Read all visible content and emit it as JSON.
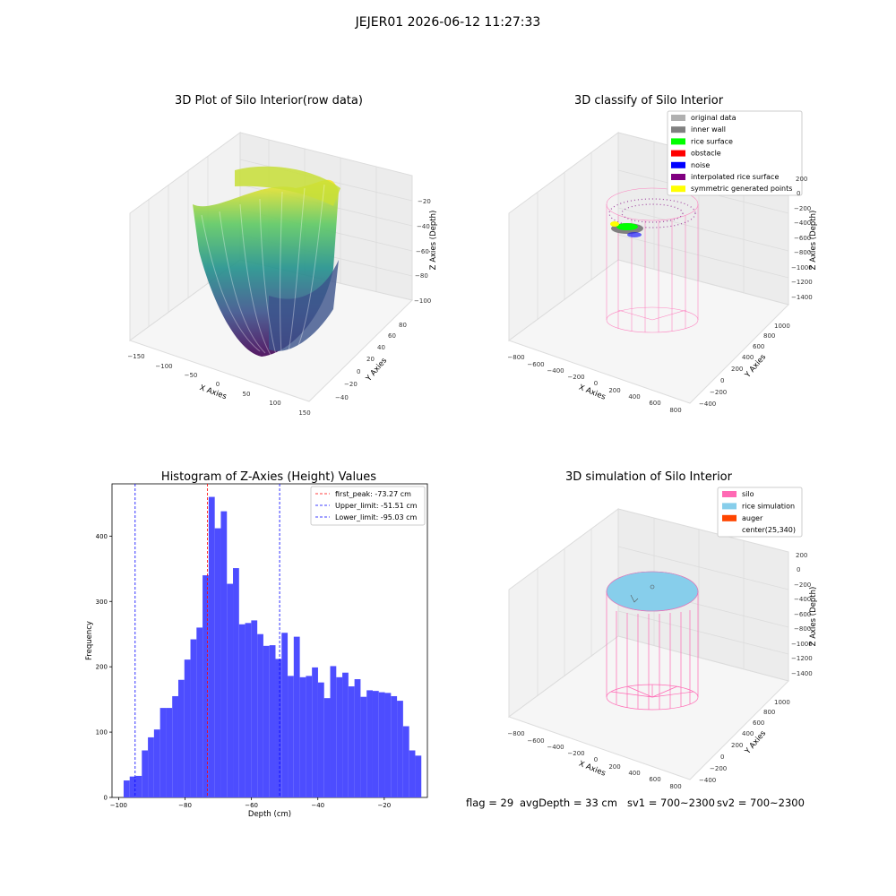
{
  "figure": {
    "suptitle": "JEJER01 2026-06-12 11:27:33"
  },
  "colors": {
    "original": "#b0b0b0",
    "inner_wall": "#808080",
    "rice_surface": "#00ff00",
    "obstacle": "#ff0000",
    "noise": "#0000ff",
    "interp": "#800080",
    "sym": "#ffff00",
    "silo": "#ff69b4",
    "rice_sim": "#87ceeb",
    "auger": "#ff4500",
    "hist_bar": "#4d4dff",
    "first_peak": "#ff0000",
    "limits": "#0000ff"
  },
  "chart_data": [
    {
      "id": "raw",
      "type": "scatter",
      "projection": "3d",
      "title": "3D Plot of Silo Interior(row data)",
      "xlabel": "X Axies",
      "ylabel": "Y Axies",
      "zlabel": "Z Axies (Depth)",
      "xlim": [
        -150,
        150
      ],
      "ylim": [
        -40,
        80
      ],
      "zlim": [
        -100,
        -20
      ],
      "xticks": [
        "−150",
        "−100",
        "−50",
        "0",
        "50",
        "100",
        "150"
      ],
      "yticks": [
        "−40",
        "−20",
        "0",
        "20",
        "40",
        "60",
        "80"
      ],
      "zticks": [
        "−20",
        "−40",
        "−60",
        "−80",
        "−100"
      ],
      "colormap": "viridis",
      "description_of_shape": "bowl-shaped point cloud, deepest near x≈0"
    },
    {
      "id": "classify",
      "type": "scatter",
      "projection": "3d",
      "title": "3D classify of Silo Interior",
      "xlabel": "X Axies",
      "ylabel": "Y Axies",
      "zlabel": "Z Axies (Depth)",
      "xticks": [
        "−800",
        "−600",
        "−400",
        "−200",
        "0",
        "200",
        "400",
        "600",
        "800"
      ],
      "yticks": [
        "−400",
        "−200",
        "0",
        "200",
        "400",
        "600",
        "800",
        "1000"
      ],
      "zticks": [
        "200",
        "0",
        "−200",
        "−400",
        "−600",
        "−800",
        "−1000",
        "−1200",
        "−1400"
      ],
      "legend": [
        {
          "label": "original data",
          "color_key": "original"
        },
        {
          "label": "inner wall",
          "color_key": "inner_wall"
        },
        {
          "label": "rice surface",
          "color_key": "rice_surface"
        },
        {
          "label": "obstacle",
          "color_key": "obstacle"
        },
        {
          "label": "noise",
          "color_key": "noise"
        },
        {
          "label": "interpolated rice surface",
          "color_key": "interp"
        },
        {
          "label": "symmetric generated points",
          "color_key": "sym"
        }
      ],
      "legend_loc": "upper right"
    },
    {
      "id": "hist",
      "type": "bar",
      "title": "Histogram of Z-Axies (Height) Values",
      "xlabel": "Depth (cm)",
      "ylabel": "Frequency",
      "xlim": [
        -102,
        -7
      ],
      "ylim": [
        0,
        480
      ],
      "xticks": [
        -100,
        -80,
        -60,
        -40,
        -20
      ],
      "xtick_labels": [
        "−100",
        "−80",
        "−60",
        "−40",
        "−20"
      ],
      "yticks": [
        0,
        100,
        200,
        300,
        400
      ],
      "yticks_labels": [
        "0",
        "100",
        "200",
        "300",
        "400"
      ],
      "bin_start": -98.5,
      "bin_width": 1.83,
      "values": [
        26,
        32,
        33,
        72,
        92,
        104,
        137,
        137,
        155,
        180,
        211,
        242,
        260,
        340,
        460,
        412,
        438,
        327,
        351,
        265,
        267,
        271,
        250,
        232,
        233,
        212,
        252,
        186,
        246,
        184,
        186,
        199,
        176,
        152,
        201,
        184,
        191,
        170,
        181,
        154,
        164,
        163,
        161,
        160,
        155,
        148,
        109,
        72,
        64
      ],
      "vlines": [
        {
          "x": -73.27,
          "label": "first_peak: -73.27 cm",
          "color_key": "first_peak"
        },
        {
          "x": -51.51,
          "label": "Upper_limit: -51.51 cm",
          "color_key": "limits"
        },
        {
          "x": -95.03,
          "label": "Lower_limit: -95.03 cm",
          "color_key": "limits"
        }
      ],
      "legend_loc": "upper right"
    },
    {
      "id": "sim",
      "type": "scatter",
      "projection": "3d",
      "title": "3D simulation of Silo Interior",
      "xlabel": "X Axies",
      "ylabel": "Y Axies",
      "zlabel": "Z Axies (Depth)",
      "xticks": [
        "−800",
        "−600",
        "−400",
        "−200",
        "0",
        "200",
        "400",
        "600",
        "800"
      ],
      "yticks": [
        "−400",
        "−200",
        "0",
        "200",
        "400",
        "600",
        "800",
        "1000"
      ],
      "zticks": [
        "200",
        "0",
        "−200",
        "−400",
        "−600",
        "−800",
        "−1000",
        "−1200",
        "−1400"
      ],
      "legend": [
        {
          "label": "silo",
          "color_key": "silo"
        },
        {
          "label": "rice simulation",
          "color_key": "rice_sim"
        },
        {
          "label": "auger",
          "color_key": "auger"
        },
        {
          "label": "center(25,340)",
          "color_key": ""
        }
      ],
      "legend_loc": "upper right"
    }
  ],
  "status": {
    "flag": "flag = 29",
    "avg_depth": "avgDepth = 33 cm",
    "sv1": "sv1 = 700~2300",
    "sv2": "sv2 = 700~2300"
  }
}
